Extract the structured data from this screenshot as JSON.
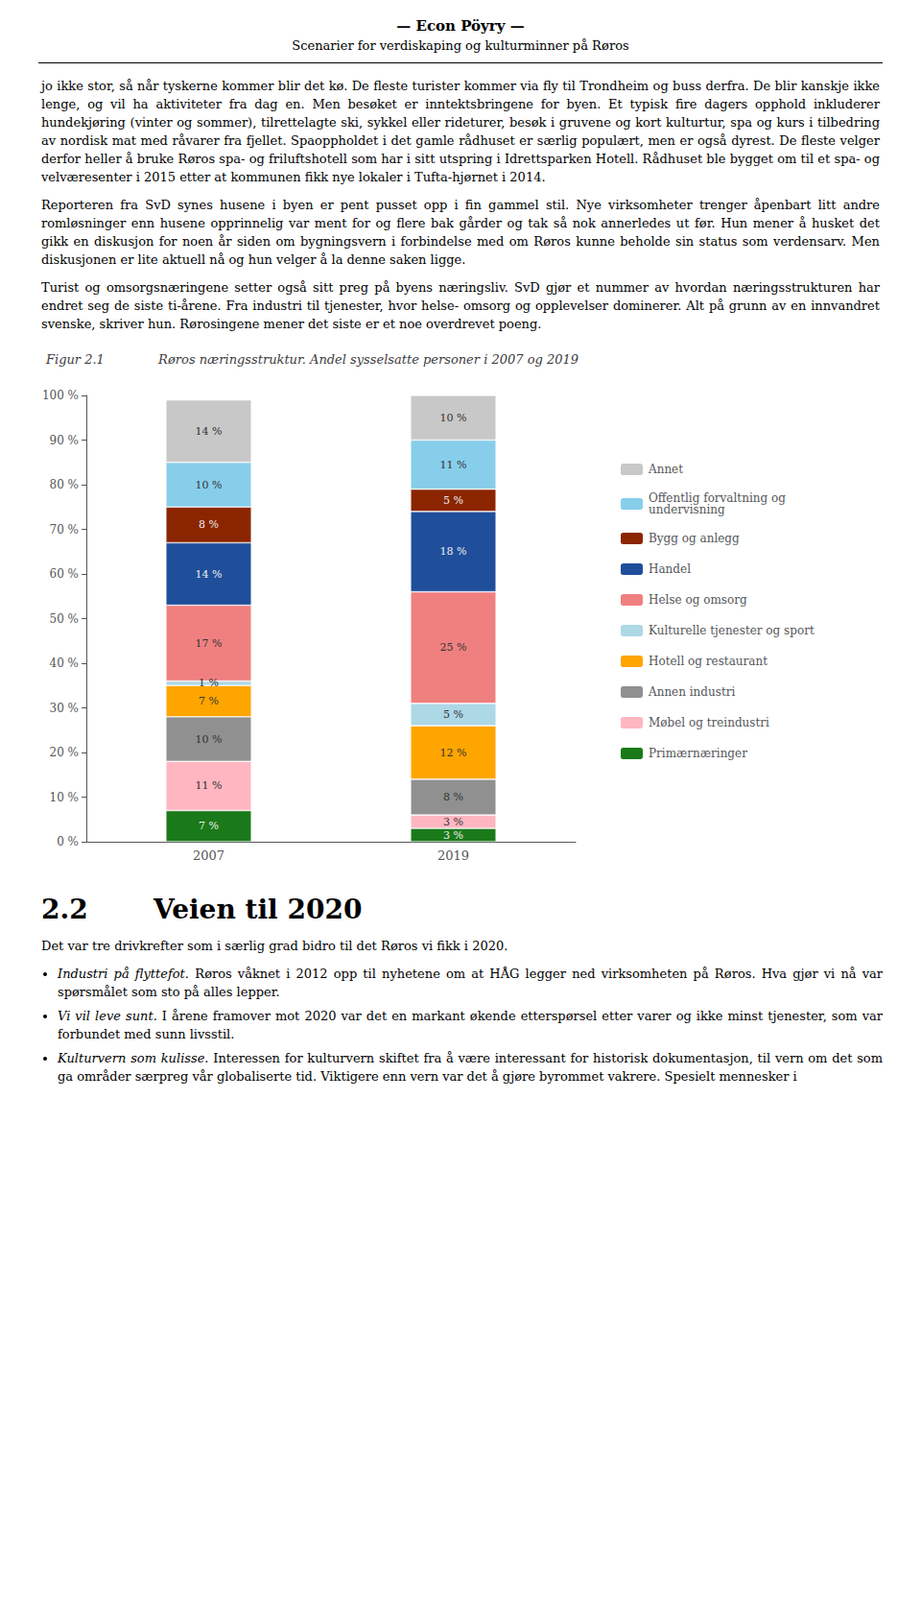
{
  "header": [
    "— Econ Pöyry —",
    "Scenarier for verdiskaping og kulturminner på Røros"
  ],
  "body_text": [
    "jo ikke stor, så når tyskerne kommer blir det kø. De fleste turister kommer via fly til Trondheim og buss derfra. De blir kanskje ikke lenge, og vil ha aktiviteter fra dag en. Men besøket er inntektsbringene for byen. Et typisk fire dagers opphold inkluderer hundekjøring (vinter og sommer), tilrettelagte ski, sykkel eller rideturer, besøk i gruvene og kort kulturtur, spa og kurs i tilbedring av nordisk mat med råvarer fra fjellet. Spaoppholdet i det gamle rådhuset er særlig populært, men er også dyrest. De fleste velger derfor heller å bruke Røros spa- og friluftshotell som har i sitt utspring i Idrettsparken Hotell. Rådhuset ble bygget om til et spa- og velværesenter i 2015 etter at kommunen fikk nye lokaler i Tufta-hjørnet i 2014.",
    "Reporteren fra SvD synes husene i byen er pent pusset opp i fin gammel stil. Nye virksomheter trenger åpenbart litt andre romløsninger enn husene opprinnelig var ment for og flere bak gårder og tak så nok annerledes ut før. Hun mener å husket det gikk en diskusjon for noen år siden om bygningsvern i forbindelse med om Røros kunne beholde sin status som verdensarv. Men diskusjonen er lite aktuell nå og hun velger å la denne saken ligge.",
    "Turist og omsorgsnæringene setter også sitt preg på byens næringsliv. SvD gjør et nummer av hvordan næringsstrukturen har endret seg de siste ti-årene. Fra industri til tjenester, hvor helse- omsorg og opplevelser dominerer. Alt på grunn av en innvandret svenske, skriver hun. Rørosingene mener det siste er et noe overdrevet poeng."
  ],
  "section": {
    "number": "2.2",
    "title": "Veien til 2020",
    "intro": "Det var tre drivkrefter som i særlig grad bidro til det Røros vi fikk i 2020.",
    "bullets": [
      {
        "italic": "Industri på flyttefot.",
        "rest": " Røros våknet i 2012 opp til nyhetene om at HÅG legger ned virksomheten på Røros. Hva gjør vi nå var spørsmålet som sto på alles lepper."
      },
      {
        "italic": "Vi vil leve sunt.",
        "rest": " I årene framover mot 2020 var det en markant økende etterspørsel etter varer og ikke minst tjenester, som var forbundet med sunn livsstil."
      },
      {
        "italic": "Kulturvern som kulisse.",
        "rest": " Interessen for kulturvern skiftet fra å være interessant for historisk dokumentasjon, til vern om det som ga områder særpreg vår globaliserte tid. Viktigere enn vern var det å gjøre byrommet vakrere. Spesielt mennesker i"
      }
    ]
  },
  "chart_data": {
    "type": "bar",
    "stacked": true,
    "title": "Røros næringsstruktur. Andel sysselsatte personer i 2007 og 2019",
    "annotations": [
      "Figur 2.1"
    ],
    "categories": [
      "2007",
      "2019"
    ],
    "series": [
      {
        "name": "Primærnæringer",
        "color": "#1A7A1A",
        "values": [
          7,
          3
        ],
        "value_labels": [
          "7 %",
          "3 %"
        ]
      },
      {
        "name": "Møbel og treindustri",
        "color": "#FFB6C1",
        "values": [
          11,
          3
        ],
        "value_labels": [
          "11 %",
          "3 %"
        ]
      },
      {
        "name": "Annen industri",
        "color": "#909090",
        "values": [
          10,
          8
        ],
        "value_labels": [
          "10 %",
          "8 %"
        ]
      },
      {
        "name": "Hotell og restaurant",
        "color": "#FFA500",
        "values": [
          7,
          12
        ],
        "value_labels": [
          "7 %",
          "12 %"
        ]
      },
      {
        "name": "Kulturelle tjenester og sport",
        "color": "#ADD8E6",
        "values": [
          1,
          5
        ],
        "value_labels": [
          "1 %",
          "5 %"
        ]
      },
      {
        "name": "Helse og omsorg",
        "color": "#F08080",
        "values": [
          17,
          25
        ],
        "value_labels": [
          "17 %",
          "25 %"
        ]
      },
      {
        "name": "Handel",
        "color": "#1F4E9B",
        "values": [
          14,
          18
        ],
        "value_labels": [
          "14 %",
          "18 %"
        ]
      },
      {
        "name": "Bygg og anlegg",
        "color": "#8B2500",
        "values": [
          8,
          5
        ],
        "value_labels": [
          "8 %",
          "5 %"
        ]
      },
      {
        "name": "Offentlig forvaltning og\nundervisning",
        "color": "#87CEEB",
        "values": [
          10,
          11
        ],
        "value_labels": [
          "10 %",
          "11 %"
        ]
      },
      {
        "name": "Annet",
        "color": "#C8C8C8",
        "values": [
          14,
          10
        ],
        "value_labels": [
          "14 %",
          "10 %"
        ]
      }
    ],
    "data_labels": true,
    "ylim": [
      0,
      100
    ],
    "yticks": [
      {
        "value": 0,
        "label": "0 %"
      },
      {
        "value": 10,
        "label": "10 %"
      },
      {
        "value": 20,
        "label": "20 %"
      },
      {
        "value": 30,
        "label": "30 %"
      },
      {
        "value": 40,
        "label": "40 %"
      },
      {
        "value": 50,
        "label": "50 %"
      },
      {
        "value": 60,
        "label": "60 %"
      },
      {
        "value": 70,
        "label": "70 %"
      },
      {
        "value": 80,
        "label": "80 %"
      },
      {
        "value": 90,
        "label": "90 %"
      },
      {
        "value": 100,
        "label": "100 %"
      }
    ],
    "grid": false,
    "legend": "right"
  }
}
